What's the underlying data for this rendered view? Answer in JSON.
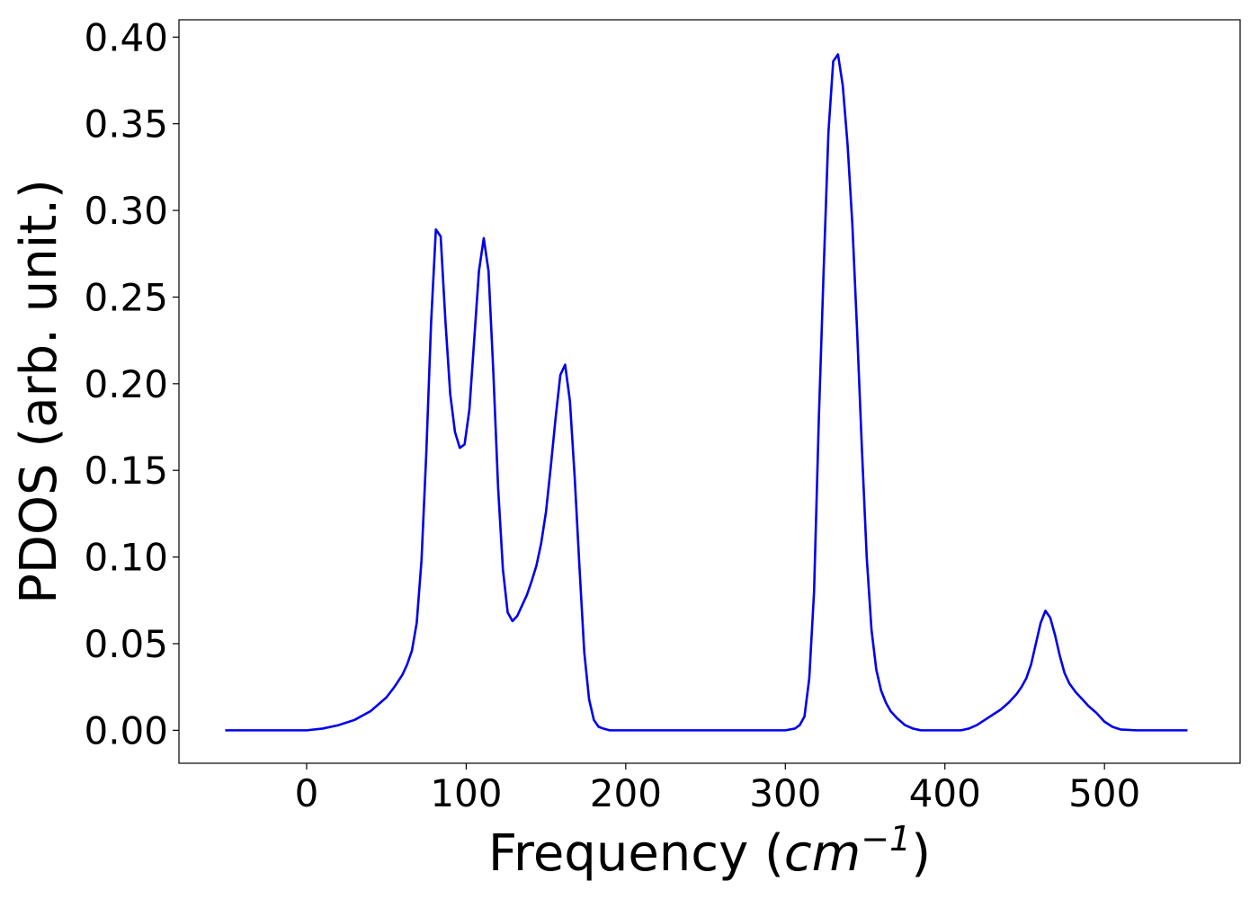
{
  "chart_data": {
    "type": "line",
    "xlabel": {
      "prefix": "Frequency (",
      "unit_base": "cm",
      "unit_exp": "−1",
      "suffix": ")"
    },
    "ylabel": "PDOS (arb. unit.)",
    "xlim": [
      -80,
      585
    ],
    "ylim": [
      -0.019,
      0.41
    ],
    "xticks": [
      0,
      100,
      200,
      300,
      400,
      500
    ],
    "xtick_labels": [
      "0",
      "100",
      "200",
      "300",
      "400",
      "500"
    ],
    "yticks": [
      0.0,
      0.05,
      0.1,
      0.15,
      0.2,
      0.25,
      0.3,
      0.35,
      0.4
    ],
    "ytick_labels": [
      "0.00",
      "0.05",
      "0.10",
      "0.15",
      "0.20",
      "0.25",
      "0.30",
      "0.35",
      "0.40"
    ],
    "grid": false,
    "legend": "none",
    "series": [
      {
        "color": "#0000ee",
        "x": [
          -51,
          0,
          10,
          20,
          30,
          40,
          45,
          50,
          55,
          60,
          63,
          66,
          69,
          72,
          75,
          78,
          81,
          84,
          87,
          90,
          93,
          96,
          99,
          102,
          105,
          108,
          111,
          114,
          117,
          120,
          123,
          126,
          129,
          132,
          135,
          138,
          141,
          144,
          147,
          150,
          153,
          156,
          159,
          162,
          165,
          168,
          171,
          174,
          177,
          180,
          183,
          186,
          190,
          200,
          250,
          300,
          306,
          309,
          312,
          315,
          318,
          321,
          324,
          327,
          330,
          333,
          336,
          339,
          342,
          345,
          348,
          351,
          354,
          357,
          360,
          363,
          366,
          370,
          375,
          380,
          385,
          390,
          400,
          410,
          415,
          420,
          425,
          430,
          435,
          440,
          445,
          448,
          451,
          454,
          457,
          460,
          463,
          466,
          469,
          472,
          475,
          478,
          482,
          486,
          490,
          495,
          500,
          505,
          510,
          520,
          552
        ],
        "y": [
          0,
          0,
          0.001,
          0.003,
          0.006,
          0.011,
          0.015,
          0.019,
          0.025,
          0.032,
          0.038,
          0.046,
          0.062,
          0.098,
          0.16,
          0.235,
          0.289,
          0.285,
          0.236,
          0.194,
          0.172,
          0.163,
          0.165,
          0.185,
          0.225,
          0.265,
          0.284,
          0.265,
          0.207,
          0.14,
          0.093,
          0.068,
          0.063,
          0.066,
          0.072,
          0.078,
          0.086,
          0.095,
          0.108,
          0.126,
          0.152,
          0.18,
          0.205,
          0.211,
          0.19,
          0.146,
          0.094,
          0.045,
          0.018,
          0.006,
          0.002,
          0.001,
          0,
          0,
          0,
          0,
          0.001,
          0.003,
          0.008,
          0.03,
          0.08,
          0.18,
          0.265,
          0.345,
          0.386,
          0.39,
          0.372,
          0.338,
          0.292,
          0.23,
          0.162,
          0.1,
          0.058,
          0.035,
          0.023,
          0.016,
          0.011,
          0.007,
          0.003,
          0.001,
          0,
          0,
          0,
          0,
          0.001,
          0.003,
          0.006,
          0.009,
          0.012,
          0.016,
          0.021,
          0.025,
          0.03,
          0.038,
          0.05,
          0.062,
          0.069,
          0.065,
          0.055,
          0.043,
          0.033,
          0.027,
          0.022,
          0.018,
          0.014,
          0.01,
          0.005,
          0.002,
          0.0005,
          0,
          0
        ]
      }
    ]
  }
}
